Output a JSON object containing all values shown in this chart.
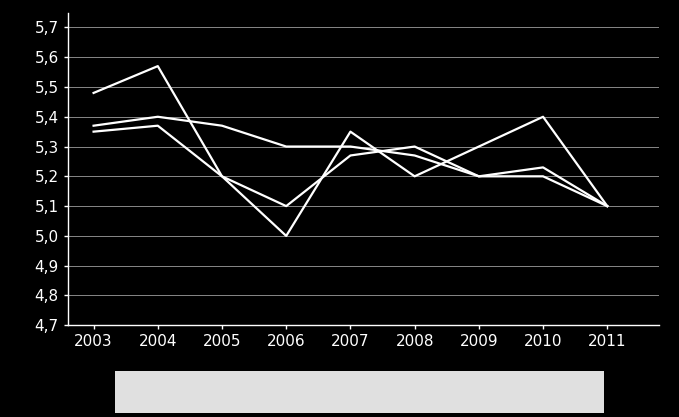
{
  "years": [
    2003,
    2004,
    2005,
    2006,
    2007,
    2008,
    2009,
    2010,
    2011
  ],
  "line1": [
    5.48,
    5.57,
    5.2,
    5.0,
    5.35,
    5.2,
    5.3,
    5.4,
    5.1
  ],
  "line2": [
    5.37,
    5.4,
    5.37,
    5.3,
    5.3,
    5.27,
    5.2,
    5.2,
    5.1
  ],
  "line3": [
    5.35,
    5.37,
    5.2,
    5.1,
    5.27,
    5.3,
    5.2,
    5.23,
    5.1
  ],
  "line_color": "#ffffff",
  "background_color": "#000000",
  "text_color": "#ffffff",
  "grid_color": "#888888",
  "ylim_min": 4.7,
  "ylim_max": 5.75,
  "yticks": [
    4.7,
    4.8,
    4.9,
    5.0,
    5.1,
    5.2,
    5.3,
    5.4,
    5.5,
    5.6,
    5.7
  ],
  "ytick_labels": [
    "4,7",
    "4,8",
    "4,9",
    "5,0",
    "5,1",
    "5,2",
    "5,3",
    "5,4",
    "5,5",
    "5,6",
    "5,7"
  ],
  "tick_label_size": 11,
  "line_width": 1.6,
  "bottom_rect_color": "#e0e0e0",
  "xlim_left": 2002.6,
  "xlim_right": 2011.8
}
